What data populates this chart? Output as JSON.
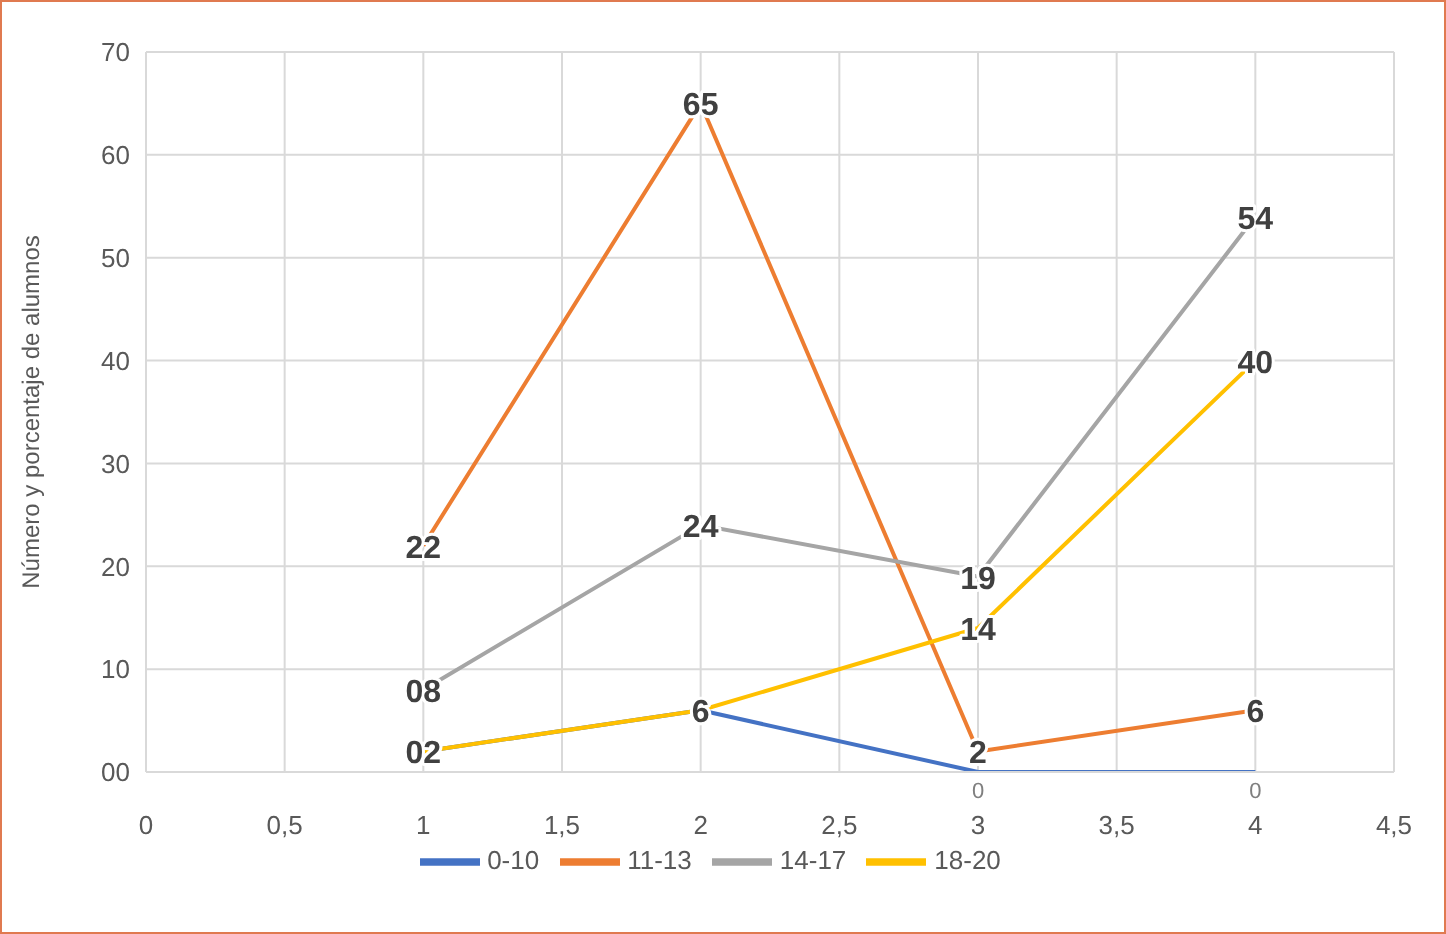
{
  "chart_data": {
    "type": "line",
    "ylabel": "Número y porcentaje de alumnos",
    "x": [
      1,
      2,
      3,
      4
    ],
    "series": [
      {
        "name": "0-10",
        "color": "#4472c4",
        "values": [
          2,
          6,
          0,
          0
        ],
        "value_labels": [
          null,
          null,
          "0",
          "0"
        ]
      },
      {
        "name": "11-13",
        "color": "#ed7d31",
        "values": [
          22,
          65,
          2,
          6
        ],
        "value_labels": [
          "22",
          "65",
          "2",
          "6"
        ]
      },
      {
        "name": "14-17",
        "color": "#a5a5a5",
        "values": [
          8,
          24,
          19,
          54
        ],
        "value_labels": [
          "08",
          "24",
          "19",
          "54"
        ]
      },
      {
        "name": "18-20",
        "color": "#ffc000",
        "values": [
          2,
          6,
          14,
          40
        ],
        "value_labels": [
          "02",
          "6",
          "14",
          "40"
        ]
      }
    ],
    "xlim": [
      0,
      4.5
    ],
    "xticks": [
      0,
      {
        "value": 0.5,
        "label": "0,5"
      },
      1,
      {
        "value": 1.5,
        "label": "1,5"
      },
      2,
      {
        "value": 2.5,
        "label": "2,5"
      },
      3,
      {
        "value": 3.5,
        "label": "3,5"
      },
      4,
      {
        "value": 4.5,
        "label": "4,5"
      }
    ],
    "ylim": [
      0,
      70
    ],
    "yticks": [
      {
        "value": 0,
        "label": "00"
      },
      10,
      20,
      30,
      40,
      50,
      60,
      70
    ],
    "grid": true,
    "legend": "bottom",
    "marker": "none",
    "line_style": "solid"
  }
}
